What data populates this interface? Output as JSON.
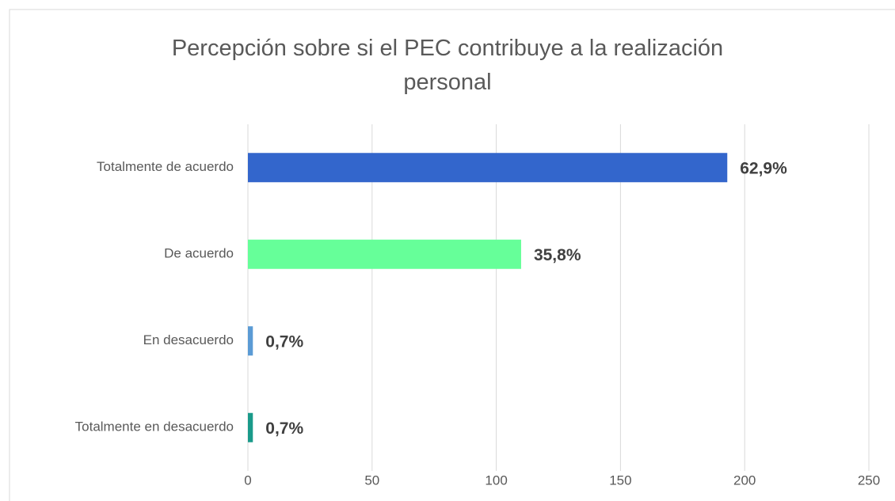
{
  "chart_data": {
    "type": "barh",
    "title": "Percepción sobre si el PEC contribuye a la realización personal",
    "categories": [
      "Totalmente de acuerdo",
      "De acuerdo",
      "En desacuerdo",
      "Totalmente en desacuerdo"
    ],
    "values": [
      193,
      110,
      2,
      2
    ],
    "value_labels": [
      "62,9%",
      "35,8%",
      "0,7%",
      "0,7%"
    ],
    "colors": [
      "#3366cc",
      "#66ff99",
      "#5b9bd5",
      "#1a9a8a"
    ],
    "xlim": [
      0,
      250
    ],
    "xticks": [
      0,
      50,
      100,
      150,
      200,
      250
    ],
    "grid": true
  }
}
